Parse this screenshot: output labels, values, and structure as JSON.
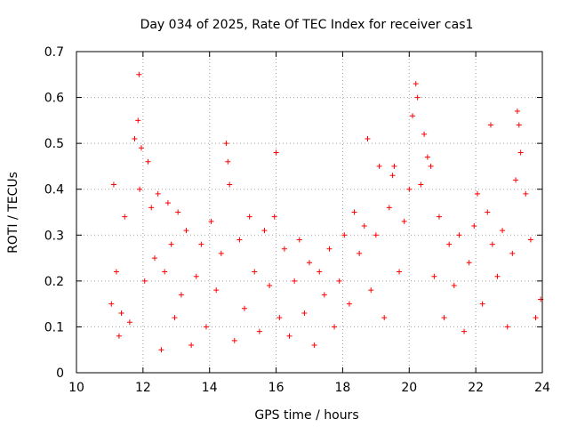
{
  "chart_data": {
    "type": "scatter",
    "title": "Day 034 of 2025, Rate Of TEC Index for receiver cas1",
    "xlabel": "GPS time / hours",
    "ylabel": "ROTI / TECUs",
    "xlim": [
      10,
      24
    ],
    "ylim": [
      0,
      0.7
    ],
    "xticks": [
      "10",
      "12",
      "14",
      "16",
      "18",
      "20",
      "22",
      "24"
    ],
    "yticks": [
      "0",
      "0.1",
      "0.2",
      "0.3",
      "0.4",
      "0.5",
      "0.6",
      "0.7"
    ],
    "grid": true,
    "marker": "plus",
    "color": "#ff0000",
    "series": [
      {
        "name": "ROTI",
        "x": [
          11.05,
          11.12,
          11.2,
          11.28,
          11.35,
          11.45,
          11.6,
          11.75,
          11.85,
          11.88,
          11.9,
          11.95,
          12.05,
          12.15,
          12.25,
          12.35,
          12.45,
          12.55,
          12.65,
          12.75,
          12.85,
          12.95,
          13.05,
          13.15,
          13.3,
          13.45,
          13.6,
          13.75,
          13.9,
          14.05,
          14.2,
          14.35,
          14.5,
          14.55,
          14.6,
          14.75,
          14.9,
          15.05,
          15.2,
          15.35,
          15.5,
          15.65,
          15.8,
          15.95,
          16.0,
          16.1,
          16.25,
          16.4,
          16.55,
          16.7,
          16.85,
          17.0,
          17.15,
          17.3,
          17.45,
          17.6,
          17.75,
          17.9,
          18.05,
          18.2,
          18.35,
          18.5,
          18.65,
          18.75,
          18.85,
          19.0,
          19.1,
          19.25,
          19.4,
          19.5,
          19.55,
          19.7,
          19.85,
          20.0,
          20.1,
          20.2,
          20.25,
          20.35,
          20.45,
          20.55,
          20.65,
          20.75,
          20.9,
          21.05,
          21.2,
          21.35,
          21.5,
          21.65,
          21.8,
          21.95,
          22.05,
          22.2,
          22.35,
          22.45,
          22.5,
          22.65,
          22.8,
          22.95,
          23.1,
          23.2,
          23.25,
          23.3,
          23.35,
          23.5,
          23.65,
          23.8,
          23.95
        ],
        "values": [
          0.15,
          0.41,
          0.22,
          0.08,
          0.13,
          0.34,
          0.11,
          0.51,
          0.55,
          0.65,
          0.4,
          0.49,
          0.2,
          0.46,
          0.36,
          0.25,
          0.39,
          0.05,
          0.22,
          0.37,
          0.28,
          0.12,
          0.35,
          0.17,
          0.31,
          0.06,
          0.21,
          0.28,
          0.1,
          0.33,
          0.18,
          0.26,
          0.5,
          0.46,
          0.41,
          0.07,
          0.29,
          0.14,
          0.34,
          0.22,
          0.09,
          0.31,
          0.19,
          0.34,
          0.48,
          0.12,
          0.27,
          0.08,
          0.2,
          0.29,
          0.13,
          0.24,
          0.06,
          0.22,
          0.17,
          0.27,
          0.1,
          0.2,
          0.3,
          0.15,
          0.35,
          0.26,
          0.32,
          0.51,
          0.18,
          0.3,
          0.45,
          0.12,
          0.36,
          0.43,
          0.45,
          0.22,
          0.33,
          0.4,
          0.56,
          0.63,
          0.6,
          0.41,
          0.52,
          0.47,
          0.45,
          0.21,
          0.34,
          0.12,
          0.28,
          0.19,
          0.3,
          0.09,
          0.24,
          0.32,
          0.39,
          0.15,
          0.35,
          0.54,
          0.28,
          0.21,
          0.31,
          0.1,
          0.26,
          0.42,
          0.57,
          0.54,
          0.48,
          0.39,
          0.29,
          0.12,
          0.16
        ]
      }
    ]
  }
}
